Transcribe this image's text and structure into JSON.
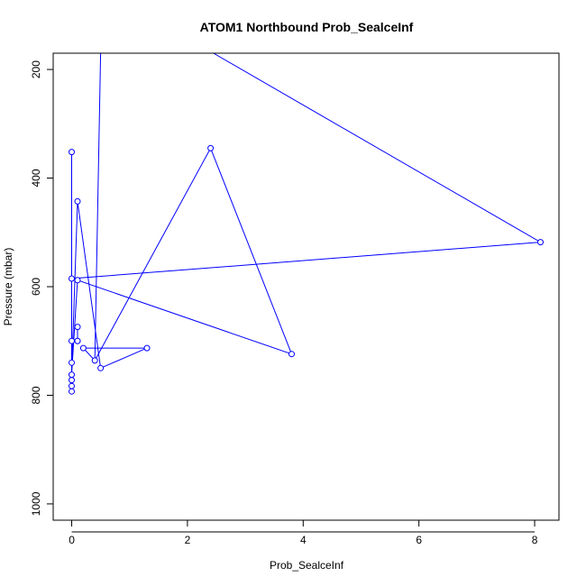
{
  "chart_data": {
    "type": "line",
    "title": "ATOM1 Northbound Prob_SealceInf",
    "xlabel": "Prob_SealceInf",
    "ylabel": "Pressure (mbar)",
    "xlim": [
      -0.32,
      8.42
    ],
    "ylim": [
      1030,
      170
    ],
    "y_axis_inverted": true,
    "x_ticks": [
      0,
      2,
      4,
      6,
      8
    ],
    "y_ticks": [
      200,
      400,
      600,
      800,
      1000
    ],
    "grid": false,
    "legend": "none",
    "series_color": "#0000ff",
    "markers": "open-circle",
    "points": [
      {
        "x": 0.0,
        "y": 793
      },
      {
        "x": 0.0,
        "y": 783
      },
      {
        "x": 0.0,
        "y": 772
      },
      {
        "x": 0.0,
        "y": 762
      },
      {
        "x": 0.0,
        "y": 762
      },
      {
        "x": 0.0,
        "y": 740
      },
      {
        "x": 0.0,
        "y": 740
      },
      {
        "x": 0.0,
        "y": 700
      },
      {
        "x": 0.1,
        "y": 700
      },
      {
        "x": 0.1,
        "y": 674
      },
      {
        "x": 0.1,
        "y": 700
      },
      {
        "x": 0.0,
        "y": 700
      },
      {
        "x": 0.0,
        "y": 585
      },
      {
        "x": 0.0,
        "y": 760
      },
      {
        "x": 0.1,
        "y": 588
      },
      {
        "x": 3.8,
        "y": 724
      },
      {
        "x": 2.4,
        "y": 345
      },
      {
        "x": 0.4,
        "y": 736
      },
      {
        "x": 0.2,
        "y": 713
      },
      {
        "x": 1.3,
        "y": 713
      },
      {
        "x": 0.5,
        "y": 750
      },
      {
        "x": 0.1,
        "y": 443
      },
      {
        "x": 0.0,
        "y": 760
      },
      {
        "x": 0.0,
        "y": 352
      },
      {
        "x": 0.0,
        "y": 762
      },
      {
        "x": 0.0,
        "y": 585
      },
      {
        "x": 8.1,
        "y": 518
      },
      {
        "x": 2.45,
        "y": 170
      },
      {
        "x": 0.5,
        "y": 170
      },
      {
        "x": 0.4,
        "y": 736
      }
    ],
    "marker_indices": [
      0,
      1,
      2,
      3,
      5,
      7,
      8,
      9,
      10,
      12,
      14,
      15,
      16,
      17,
      18,
      19,
      20,
      21,
      23,
      26
    ]
  }
}
